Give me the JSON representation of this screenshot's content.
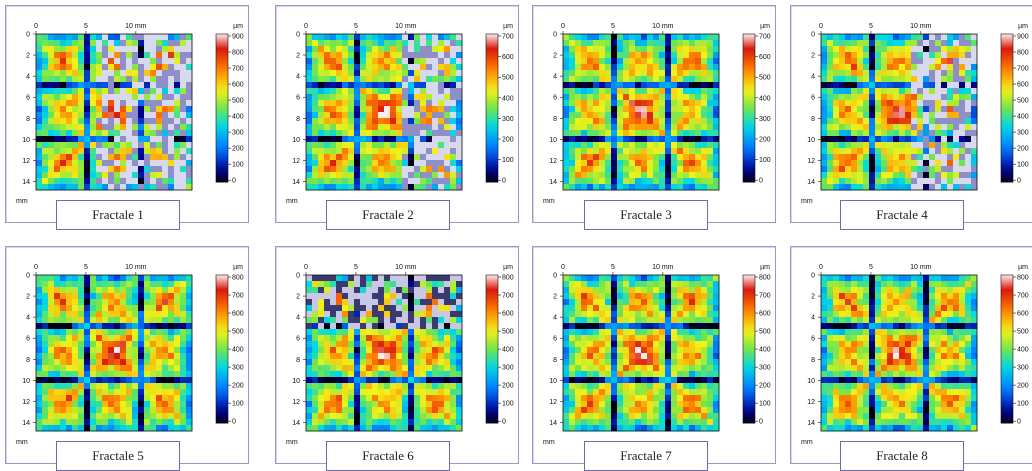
{
  "axis": {
    "x_ticks": [
      "0",
      "5",
      "10 mm"
    ],
    "y_ticks": [
      "0",
      "2",
      "4",
      "6",
      "8",
      "10",
      "12",
      "14"
    ],
    "y_unit": "mm",
    "colorbar_unit": "µm"
  },
  "panels": [
    {
      "caption": "Fractale 1",
      "colorbar_ticks": [
        "900",
        "800",
        "700",
        "600",
        "500",
        "400",
        "300",
        "200",
        "100",
        "0"
      ],
      "noise": {
        "type": "right",
        "from": 0.38
      }
    },
    {
      "caption": "Fractale 2",
      "colorbar_ticks": [
        "700",
        "600",
        "500",
        "400",
        "300",
        "200",
        "100",
        "0"
      ],
      "noise": {
        "type": "right",
        "from": 0.62
      }
    },
    {
      "caption": "Fractale 3",
      "colorbar_ticks": [
        "700",
        "600",
        "500",
        "400",
        "300",
        "200",
        "100",
        "0"
      ],
      "noise": {
        "type": "none"
      }
    },
    {
      "caption": "Fractale 4",
      "colorbar_ticks": [
        "900",
        "800",
        "700",
        "600",
        "500",
        "400",
        "300",
        "200",
        "100",
        "0"
      ],
      "noise": {
        "type": "right",
        "from": 0.58
      }
    },
    {
      "caption": "Fractale 5",
      "colorbar_ticks": [
        "800",
        "700",
        "600",
        "500",
        "400",
        "300",
        "200",
        "100",
        "0"
      ],
      "noise": {
        "type": "none"
      }
    },
    {
      "caption": "Fractale 6",
      "colorbar_ticks": [
        "800",
        "700",
        "600",
        "500",
        "400",
        "300",
        "200",
        "100",
        "0"
      ],
      "noise": {
        "type": "top",
        "from": 0.33
      }
    },
    {
      "caption": "Fractale 7",
      "colorbar_ticks": [
        "800",
        "700",
        "600",
        "500",
        "400",
        "300",
        "200",
        "100",
        "0"
      ],
      "noise": {
        "type": "none"
      }
    },
    {
      "caption": "Fractale 8",
      "colorbar_ticks": [
        "800",
        "700",
        "600",
        "500",
        "400",
        "300",
        "200",
        "100",
        "0"
      ],
      "noise": {
        "type": "none"
      }
    }
  ]
}
